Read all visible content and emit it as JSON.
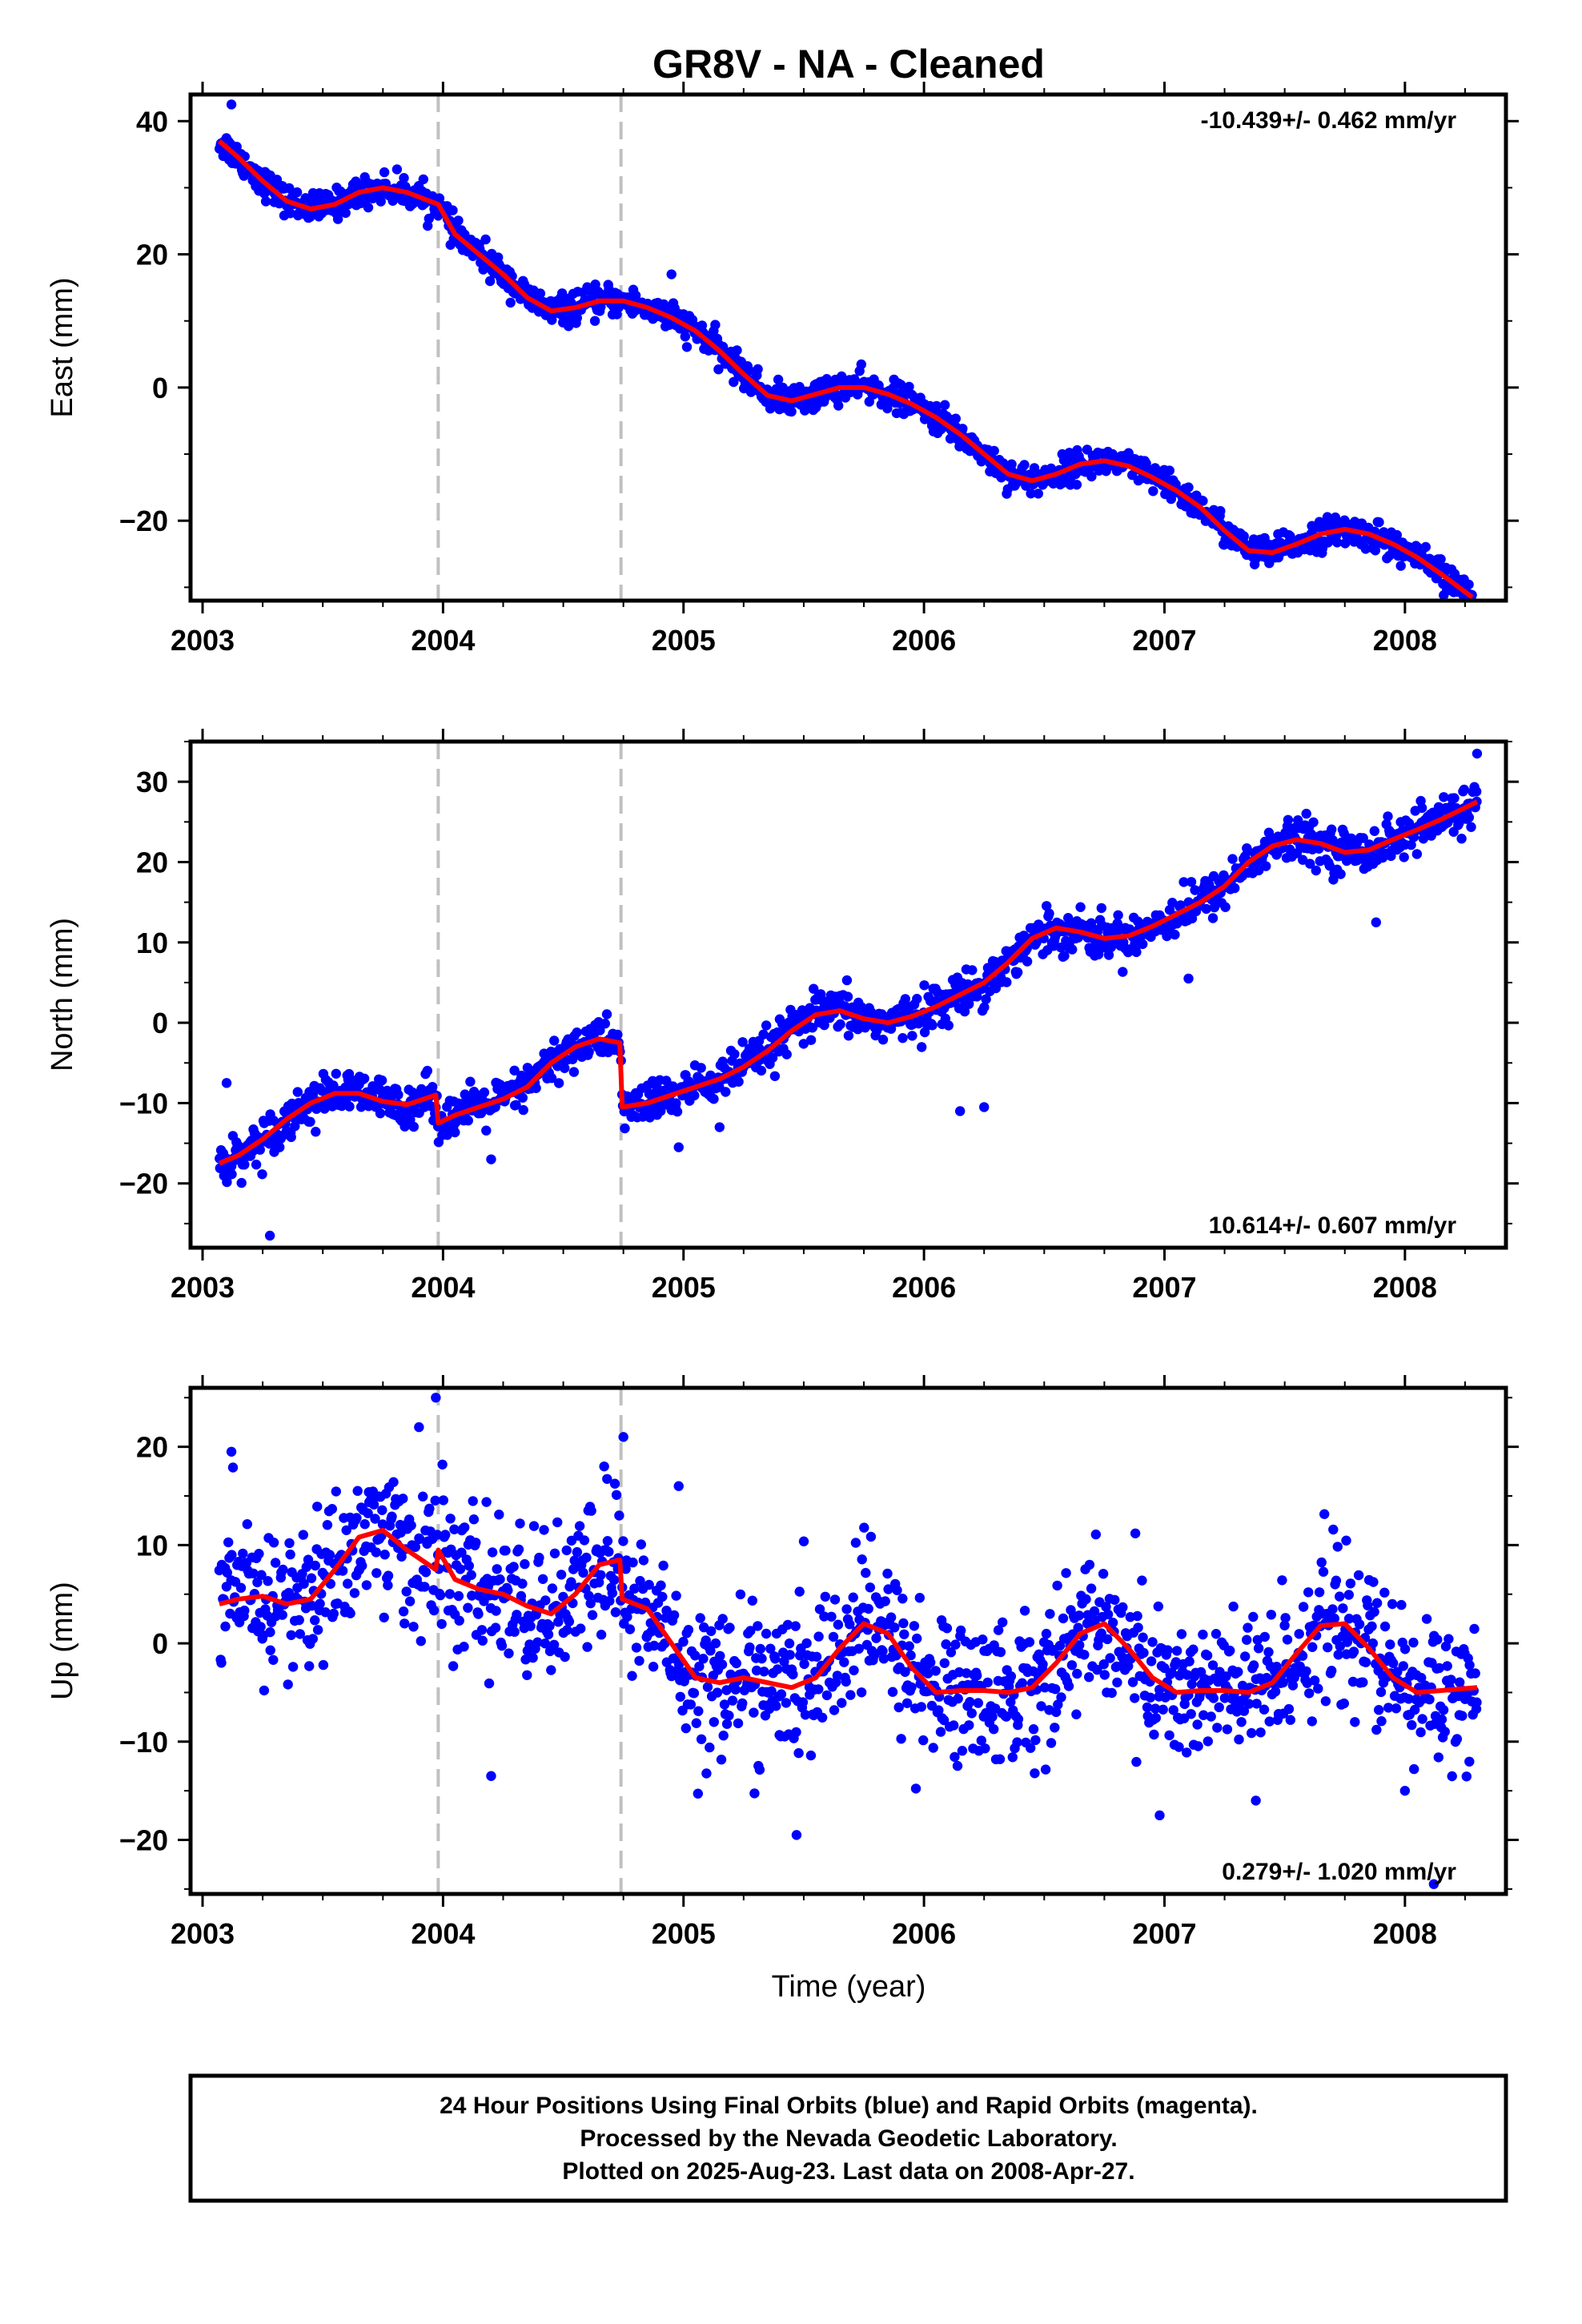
{
  "title": "GR8V  - NA - Cleaned",
  "xlabel": "Time (year)",
  "footer": {
    "line1": "24 Hour Positions Using Final Orbits (blue) and Rapid Orbits (magenta).",
    "line2": "Processed by the Nevada Geodetic Laboratory.",
    "line3": "Plotted on 2025-Aug-23. Last data on 2008-Apr-27."
  },
  "colors": {
    "points": "#0000ff",
    "model": "#ff0000",
    "breaks": "#c0c0c0",
    "frame": "#000000"
  },
  "chart_data": [
    {
      "type": "scatter",
      "ylabel": "East (mm)",
      "rate": "-10.439+/- 0.462 mm/yr",
      "rate_position": "top-right",
      "xlim": [
        2002.95,
        2008.42
      ],
      "ylim": [
        -32,
        44
      ],
      "xticks": [
        "2003",
        "2004",
        "2005",
        "2006",
        "2007",
        "2008"
      ],
      "yticks": [
        "40",
        "20",
        "0",
        "−20"
      ],
      "ytick_values": [
        40,
        20,
        0,
        -20
      ],
      "breaks": [
        2003.98,
        2004.74
      ],
      "model": {
        "x": [
          2003.07,
          2003.15,
          2003.25,
          2003.35,
          2003.45,
          2003.55,
          2003.65,
          2003.75,
          2003.85,
          2003.98,
          2004.05,
          2004.15,
          2004.25,
          2004.35,
          2004.45,
          2004.55,
          2004.65,
          2004.75,
          2004.85,
          2004.95,
          2005.05,
          2005.15,
          2005.25,
          2005.35,
          2005.45,
          2005.55,
          2005.65,
          2005.75,
          2005.85,
          2005.95,
          2006.05,
          2006.15,
          2006.25,
          2006.35,
          2006.45,
          2006.55,
          2006.65,
          2006.75,
          2006.85,
          2006.95,
          2007.05,
          2007.15,
          2007.25,
          2007.35,
          2007.45,
          2007.55,
          2007.65,
          2007.75,
          2007.85,
          2007.95,
          2008.05,
          2008.15,
          2008.28
        ],
        "y": [
          37,
          34.5,
          31,
          28,
          26.8,
          27.5,
          29.3,
          30,
          29.3,
          27.5,
          23,
          20,
          17,
          13.5,
          11.5,
          12,
          13,
          13,
          12,
          10.5,
          8.5,
          5.5,
          2,
          -1.2,
          -2,
          -1,
          0,
          0,
          -1,
          -2.5,
          -4.5,
          -7,
          -10,
          -13,
          -14,
          -13,
          -11.5,
          -11,
          -11.8,
          -13.5,
          -15.5,
          -18,
          -21.5,
          -24.5,
          -24.8,
          -23.5,
          -22,
          -21.3,
          -22,
          -23.5,
          -25.5,
          -28,
          -31.5
        ]
      },
      "scatter": {
        "sigma": 1.1,
        "outliers": [
          [
            2003.12,
            42.5
          ],
          [
            2004.95,
            17
          ],
          [
            2008.12,
            -26
          ]
        ]
      }
    },
    {
      "type": "scatter",
      "ylabel": "North (mm)",
      "rate": "10.614+/- 0.607 mm/yr",
      "rate_position": "bottom-right",
      "xlim": [
        2002.95,
        2008.42
      ],
      "ylim": [
        -28,
        35
      ],
      "xticks": [
        "2003",
        "2004",
        "2005",
        "2006",
        "2007",
        "2008"
      ],
      "yticks": [
        "30",
        "20",
        "10",
        "0",
        "−10",
        "−20"
      ],
      "ytick_values": [
        30,
        20,
        10,
        0,
        -10,
        -20
      ],
      "breaks": [
        2003.98,
        2004.74
      ],
      "model": {
        "x": [
          2003.07,
          2003.15,
          2003.25,
          2003.35,
          2003.45,
          2003.55,
          2003.65,
          2003.75,
          2003.85,
          2003.97,
          2003.98,
          2004.05,
          2004.15,
          2004.25,
          2004.35,
          2004.45,
          2004.55,
          2004.65,
          2004.735,
          2004.745,
          2004.85,
          2004.95,
          2005.05,
          2005.15,
          2005.25,
          2005.35,
          2005.45,
          2005.55,
          2005.65,
          2005.75,
          2005.85,
          2005.95,
          2006.05,
          2006.15,
          2006.25,
          2006.35,
          2006.45,
          2006.55,
          2006.65,
          2006.75,
          2006.85,
          2006.95,
          2007.05,
          2007.15,
          2007.25,
          2007.35,
          2007.45,
          2007.55,
          2007.65,
          2007.75,
          2007.85,
          2007.95,
          2008.05,
          2008.15,
          2008.3
        ],
        "y": [
          -17.5,
          -16.5,
          -14.5,
          -12,
          -10,
          -8.8,
          -8.8,
          -9.8,
          -10.2,
          -9,
          -12.5,
          -11.5,
          -10.5,
          -9.5,
          -8,
          -5,
          -3,
          -2,
          -2.5,
          -10.5,
          -10,
          -9,
          -8,
          -7,
          -5.5,
          -3.5,
          -1,
          1,
          1.5,
          0.5,
          0,
          0.8,
          2,
          3.5,
          5,
          7.5,
          10.5,
          11.8,
          11.3,
          10.5,
          10.8,
          12,
          13.5,
          15,
          17,
          20,
          22,
          22.8,
          22.3,
          21.2,
          21.5,
          22.8,
          24,
          25.3,
          27.5
        ]
      },
      "scatter": {
        "sigma": 1.3,
        "outliers": [
          [
            2003.1,
            -7.5
          ],
          [
            2003.28,
            -26.5
          ],
          [
            2004.2,
            -17
          ],
          [
            2004.98,
            -15.5
          ],
          [
            2005.15,
            -13
          ],
          [
            2006.15,
            -11
          ],
          [
            2006.25,
            -10.5
          ],
          [
            2007.88,
            12.5
          ],
          [
            2008.05,
            21
          ],
          [
            2008.3,
            33.5
          ],
          [
            2007.1,
            5.5
          ]
        ]
      }
    },
    {
      "type": "scatter",
      "ylabel": "Up (mm)",
      "rate": "0.279+/- 1.020 mm/yr",
      "rate_position": "bottom-right",
      "xlim": [
        2002.95,
        2008.42
      ],
      "ylim": [
        -25.5,
        26
      ],
      "xticks": [
        "2003",
        "2004",
        "2005",
        "2006",
        "2007",
        "2008"
      ],
      "yticks": [
        "20",
        "10",
        "0",
        "−10",
        "−20"
      ],
      "ytick_values": [
        20,
        10,
        0,
        -10,
        -20
      ],
      "breaks": [
        2003.98,
        2004.74
      ],
      "model": {
        "x": [
          2003.07,
          2003.15,
          2003.25,
          2003.35,
          2003.45,
          2003.55,
          2003.65,
          2003.75,
          2003.85,
          2003.97,
          2003.98,
          2004.05,
          2004.15,
          2004.25,
          2004.35,
          2004.45,
          2004.55,
          2004.65,
          2004.735,
          2004.745,
          2004.85,
          2004.95,
          2005.05,
          2005.15,
          2005.25,
          2005.35,
          2005.45,
          2005.55,
          2005.65,
          2005.75,
          2005.85,
          2005.95,
          2006.05,
          2006.15,
          2006.25,
          2006.35,
          2006.45,
          2006.55,
          2006.65,
          2006.75,
          2006.85,
          2006.95,
          2007.05,
          2007.15,
          2007.25,
          2007.35,
          2007.45,
          2007.55,
          2007.65,
          2007.75,
          2007.85,
          2007.95,
          2008.05,
          2008.15,
          2008.3
        ],
        "y": [
          4,
          4.5,
          4.8,
          4,
          4.5,
          7.5,
          10.8,
          11.5,
          9.5,
          7.5,
          9.5,
          6.5,
          5.5,
          5,
          3.8,
          3,
          5,
          8,
          8.5,
          4.5,
          3.5,
          0,
          -3.5,
          -4,
          -3.5,
          -4,
          -4.5,
          -3.5,
          -0.5,
          2,
          1,
          -2.5,
          -5,
          -4.8,
          -4.8,
          -5,
          -4.5,
          -2,
          1,
          2,
          -0.5,
          -3.5,
          -5,
          -4.8,
          -4.8,
          -5,
          -4,
          -1,
          1.8,
          2,
          -0.5,
          -3.5,
          -5,
          -4.8,
          -4.5
        ]
      },
      "scatter": {
        "sigma": 3.8,
        "outliers": [
          [
            2003.12,
            19.5
          ],
          [
            2003.97,
            25
          ],
          [
            2003.9,
            22
          ],
          [
            2004.75,
            21
          ],
          [
            2004.67,
            18
          ],
          [
            2004.98,
            16
          ],
          [
            2004.2,
            -13.5
          ],
          [
            2005.47,
            -19.5
          ],
          [
            2006.98,
            -17.5
          ],
          [
            2007.38,
            -16
          ],
          [
            2008.12,
            -24.5
          ],
          [
            2008.0,
            -15
          ]
        ]
      }
    }
  ]
}
